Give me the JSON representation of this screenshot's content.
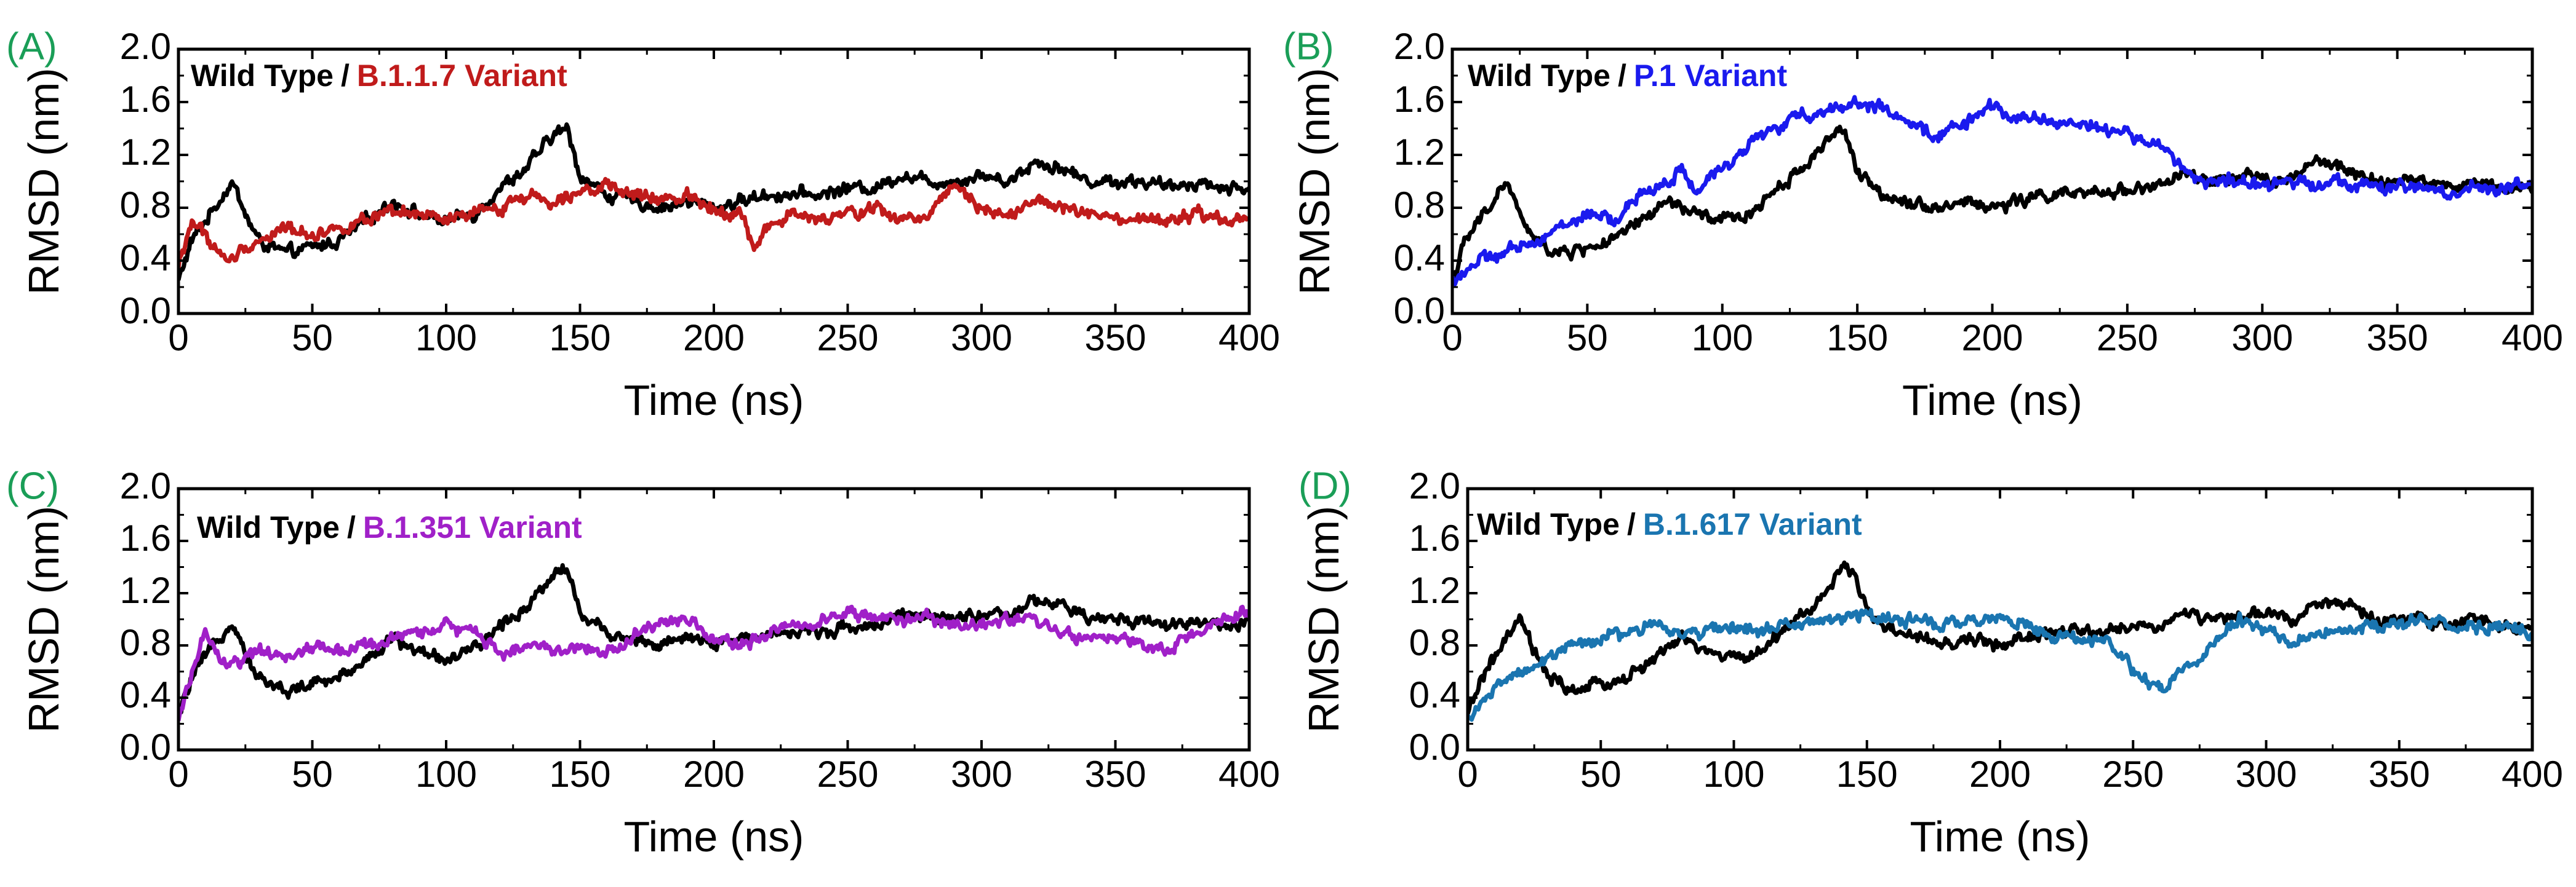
{
  "chart_data": [
    {
      "type": "line",
      "panel_label": "(A)",
      "xlabel": "Time (ns)",
      "ylabel": "RMSD (nm)",
      "xlim": [
        0,
        400
      ],
      "ylim": [
        0,
        2.0
      ],
      "xticks": [
        0,
        50,
        100,
        150,
        200,
        250,
        300,
        350,
        400
      ],
      "yticks": [
        0.0,
        0.4,
        0.8,
        1.2,
        1.6,
        2.0
      ],
      "legend": {
        "placement": "top-left",
        "prefix": "Wild Type",
        "separator": "/",
        "variant": "B.1.1.7 Variant"
      },
      "series": [
        {
          "name": "Wild Type",
          "color": "#000000",
          "x": [
            0,
            5,
            10,
            15,
            20,
            25,
            30,
            40,
            50,
            60,
            70,
            80,
            90,
            100,
            110,
            120,
            130,
            140,
            145,
            150,
            160,
            170,
            180,
            190,
            200,
            210,
            220,
            230,
            240,
            250,
            260,
            270,
            280,
            290,
            300,
            310,
            320,
            330,
            340,
            350,
            360,
            370,
            380,
            390,
            400
          ],
          "y": [
            0.25,
            0.55,
            0.7,
            0.85,
            1.0,
            0.75,
            0.55,
            0.45,
            0.5,
            0.55,
            0.7,
            0.85,
            0.75,
            0.7,
            0.75,
            0.95,
            1.1,
            1.35,
            1.4,
            1.05,
            0.9,
            0.85,
            0.8,
            0.85,
            0.8,
            0.85,
            0.9,
            0.9,
            0.9,
            0.95,
            0.95,
            1.05,
            1.0,
            1.0,
            1.05,
            1.0,
            1.15,
            1.1,
            1.0,
            1.0,
            1.0,
            0.95,
            1.0,
            0.95,
            0.95
          ]
        },
        {
          "name": "B.1.1.7 Variant",
          "color": "#c01b1b",
          "x": [
            0,
            5,
            10,
            15,
            20,
            25,
            30,
            40,
            50,
            60,
            70,
            80,
            90,
            100,
            110,
            120,
            130,
            140,
            150,
            160,
            170,
            180,
            190,
            200,
            210,
            215,
            220,
            230,
            240,
            250,
            260,
            270,
            280,
            290,
            300,
            310,
            320,
            330,
            340,
            350,
            360,
            370,
            380,
            390,
            400
          ],
          "y": [
            0.35,
            0.7,
            0.6,
            0.45,
            0.4,
            0.5,
            0.55,
            0.65,
            0.6,
            0.65,
            0.7,
            0.75,
            0.75,
            0.7,
            0.75,
            0.8,
            0.9,
            0.85,
            0.95,
            0.95,
            0.9,
            0.85,
            0.9,
            0.8,
            0.75,
            0.5,
            0.65,
            0.75,
            0.7,
            0.75,
            0.8,
            0.7,
            0.75,
            1.0,
            0.8,
            0.75,
            0.85,
            0.8,
            0.75,
            0.7,
            0.7,
            0.7,
            0.75,
            0.7,
            0.7
          ]
        }
      ]
    },
    {
      "type": "line",
      "panel_label": "(B)",
      "xlabel": "Time (ns)",
      "ylabel": "RMSD (nm)",
      "xlim": [
        0,
        400
      ],
      "ylim": [
        0,
        2.0
      ],
      "xticks": [
        0,
        50,
        100,
        150,
        200,
        250,
        300,
        350,
        400
      ],
      "yticks": [
        0.0,
        0.4,
        0.8,
        1.2,
        1.6,
        2.0
      ],
      "legend": {
        "placement": "top-left",
        "prefix": "Wild Type",
        "separator": "/",
        "variant": "P.1 Variant"
      },
      "series": [
        {
          "name": "Wild Type",
          "color": "#000000",
          "x": [
            0,
            5,
            10,
            15,
            20,
            25,
            30,
            40,
            50,
            60,
            70,
            80,
            90,
            100,
            110,
            120,
            130,
            140,
            145,
            150,
            160,
            170,
            180,
            190,
            200,
            210,
            220,
            230,
            240,
            250,
            260,
            270,
            280,
            290,
            300,
            310,
            320,
            330,
            340,
            350,
            360,
            370,
            380,
            390,
            400
          ],
          "y": [
            0.25,
            0.55,
            0.7,
            0.85,
            1.0,
            0.75,
            0.55,
            0.45,
            0.5,
            0.55,
            0.7,
            0.85,
            0.75,
            0.7,
            0.75,
            0.95,
            1.1,
            1.35,
            1.4,
            1.05,
            0.9,
            0.85,
            0.8,
            0.85,
            0.8,
            0.85,
            0.9,
            0.9,
            0.9,
            0.95,
            0.95,
            1.05,
            1.0,
            1.0,
            1.05,
            1.0,
            1.15,
            1.1,
            1.0,
            1.0,
            1.0,
            0.95,
            1.0,
            0.95,
            0.95
          ]
        },
        {
          "name": "P.1 Variant",
          "color": "#1a1aee",
          "x": [
            0,
            10,
            20,
            30,
            40,
            50,
            60,
            70,
            75,
            80,
            85,
            90,
            100,
            110,
            120,
            130,
            140,
            150,
            160,
            170,
            180,
            190,
            200,
            210,
            220,
            230,
            240,
            250,
            260,
            270,
            280,
            290,
            300,
            310,
            320,
            330,
            340,
            350,
            360,
            370,
            380,
            390,
            400
          ],
          "y": [
            0.25,
            0.4,
            0.45,
            0.55,
            0.65,
            0.75,
            0.7,
            0.9,
            0.95,
            1.0,
            1.1,
            0.9,
            1.1,
            1.3,
            1.4,
            1.5,
            1.55,
            1.6,
            1.55,
            1.4,
            1.35,
            1.45,
            1.55,
            1.5,
            1.45,
            1.45,
            1.4,
            1.35,
            1.3,
            1.1,
            1.0,
            1.0,
            0.95,
            1.0,
            1.0,
            1.0,
            0.95,
            0.95,
            0.95,
            0.9,
            0.95,
            0.95,
            1.0
          ]
        }
      ]
    },
    {
      "type": "line",
      "panel_label": "(C)",
      "xlabel": "Time (ns)",
      "ylabel": "RMSD (nm)",
      "xlim": [
        0,
        400
      ],
      "ylim": [
        0,
        2.0
      ],
      "xticks": [
        0,
        50,
        100,
        150,
        200,
        250,
        300,
        350,
        400
      ],
      "yticks": [
        0.0,
        0.4,
        0.8,
        1.2,
        1.6,
        2.0
      ],
      "legend": {
        "placement": "top-left",
        "prefix": "Wild Type",
        "separator": "/",
        "variant": "B.1.351 Variant"
      },
      "series": [
        {
          "name": "Wild Type",
          "color": "#000000",
          "x": [
            0,
            5,
            10,
            15,
            20,
            25,
            30,
            40,
            50,
            60,
            70,
            80,
            90,
            100,
            110,
            120,
            130,
            140,
            145,
            150,
            160,
            170,
            180,
            190,
            200,
            210,
            220,
            230,
            240,
            250,
            260,
            270,
            280,
            290,
            300,
            310,
            320,
            330,
            340,
            350,
            360,
            370,
            380,
            390,
            400
          ],
          "y": [
            0.25,
            0.55,
            0.7,
            0.85,
            1.0,
            0.75,
            0.55,
            0.45,
            0.5,
            0.55,
            0.7,
            0.85,
            0.75,
            0.7,
            0.75,
            0.95,
            1.1,
            1.35,
            1.4,
            1.05,
            0.9,
            0.85,
            0.8,
            0.85,
            0.8,
            0.85,
            0.9,
            0.9,
            0.9,
            0.95,
            0.95,
            1.05,
            1.0,
            1.0,
            1.05,
            1.0,
            1.15,
            1.1,
            1.0,
            1.0,
            1.0,
            0.95,
            1.0,
            0.95,
            0.95
          ]
        },
        {
          "name": "B.1.351 Variant",
          "color": "#a020c8",
          "x": [
            0,
            5,
            10,
            15,
            20,
            30,
            40,
            50,
            60,
            70,
            80,
            90,
            100,
            110,
            120,
            130,
            140,
            150,
            160,
            170,
            180,
            190,
            200,
            210,
            220,
            230,
            240,
            250,
            260,
            270,
            280,
            290,
            300,
            310,
            320,
            330,
            340,
            350,
            360,
            370,
            380,
            390,
            400
          ],
          "y": [
            0.2,
            0.6,
            0.9,
            0.7,
            0.65,
            0.75,
            0.7,
            0.8,
            0.75,
            0.8,
            0.85,
            0.9,
            0.95,
            0.9,
            0.75,
            0.8,
            0.75,
            0.8,
            0.75,
            0.85,
            1.0,
            1.0,
            0.85,
            0.8,
            0.9,
            0.95,
            1.0,
            1.05,
            1.0,
            1.0,
            1.0,
            0.95,
            0.95,
            1.0,
            1.0,
            0.9,
            0.85,
            0.85,
            0.8,
            0.75,
            0.9,
            1.0,
            1.05
          ]
        }
      ]
    },
    {
      "type": "line",
      "panel_label": "(D)",
      "xlabel": "Time (ns)",
      "ylabel": "RMSD (nm)",
      "xlim": [
        0,
        400
      ],
      "ylim": [
        0,
        2.0
      ],
      "xticks": [
        0,
        50,
        100,
        150,
        200,
        250,
        300,
        350,
        400
      ],
      "yticks": [
        0.0,
        0.4,
        0.8,
        1.2,
        1.6,
        2.0
      ],
      "legend": {
        "placement": "top-left",
        "prefix": "Wild Type",
        "separator": "/",
        "variant": "B.1.617 Variant"
      },
      "series": [
        {
          "name": "Wild Type",
          "color": "#000000",
          "x": [
            0,
            5,
            10,
            15,
            20,
            25,
            30,
            40,
            50,
            60,
            70,
            80,
            90,
            100,
            110,
            120,
            130,
            140,
            145,
            150,
            160,
            170,
            180,
            190,
            200,
            210,
            220,
            230,
            240,
            250,
            260,
            270,
            280,
            290,
            300,
            310,
            320,
            330,
            340,
            350,
            360,
            370,
            380,
            390,
            400
          ],
          "y": [
            0.25,
            0.55,
            0.7,
            0.85,
            1.0,
            0.75,
            0.55,
            0.45,
            0.5,
            0.55,
            0.7,
            0.85,
            0.75,
            0.7,
            0.75,
            0.95,
            1.1,
            1.35,
            1.4,
            1.05,
            0.9,
            0.85,
            0.8,
            0.85,
            0.8,
            0.85,
            0.9,
            0.9,
            0.9,
            0.95,
            0.95,
            1.05,
            1.0,
            1.0,
            1.05,
            1.0,
            1.15,
            1.1,
            1.0,
            1.0,
            1.0,
            0.95,
            1.0,
            0.95,
            0.95
          ]
        },
        {
          "name": "B.1.617 Variant",
          "color": "#1a75b0",
          "x": [
            0,
            5,
            10,
            15,
            20,
            30,
            40,
            50,
            60,
            70,
            80,
            90,
            100,
            110,
            120,
            130,
            140,
            150,
            160,
            170,
            180,
            190,
            200,
            210,
            220,
            230,
            240,
            250,
            255,
            260,
            270,
            280,
            290,
            300,
            310,
            320,
            330,
            340,
            350,
            360,
            370,
            380,
            390,
            400
          ],
          "y": [
            0.25,
            0.35,
            0.45,
            0.55,
            0.6,
            0.7,
            0.8,
            0.85,
            0.9,
            0.95,
            0.9,
            0.9,
            0.95,
            0.9,
            0.95,
            1.0,
            1.0,
            1.05,
            1.0,
            1.0,
            0.95,
            1.0,
            1.0,
            0.95,
            0.9,
            0.85,
            0.85,
            0.6,
            0.5,
            0.45,
            0.65,
            0.8,
            1.0,
            0.9,
            0.85,
            0.9,
            0.9,
            0.95,
            0.95,
            1.0,
            0.95,
            0.95,
            0.95,
            0.9
          ]
        }
      ]
    }
  ]
}
